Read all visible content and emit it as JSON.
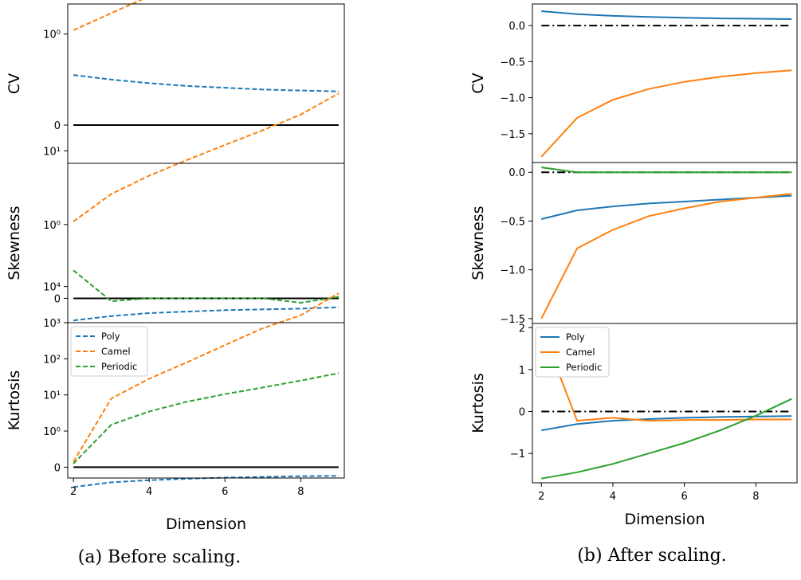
{
  "colors": {
    "poly": "#1f77b4",
    "camel": "#ff7f0e",
    "periodic": "#2ca02c",
    "reference": "#000000"
  },
  "captions": {
    "left": "(a) Before scaling.",
    "right": "(b) After scaling."
  },
  "chart_data": [
    {
      "id": "before",
      "type": "line",
      "line_style": "dashed",
      "x": [
        2,
        3,
        4,
        5,
        6,
        7,
        8,
        9
      ],
      "xlabel": "Dimension",
      "xticks": [
        "2",
        "4",
        "6",
        "8"
      ],
      "xlim": [
        1.85,
        9.15
      ],
      "yscale": "symlog",
      "legend": {
        "panel": "Kurtosis",
        "position": "top-left",
        "entries": [
          "Poly",
          "Camel",
          "Periodic"
        ]
      },
      "panels": [
        {
          "ylabel": "CV",
          "yticks": [
            "0",
            "10⁰",
            "10¹"
          ],
          "ylim_log10": [
            -0.42,
            1.33
          ],
          "reference": 0,
          "series": [
            {
              "name": "Poly",
              "values": [
                0.55,
                0.5,
                0.46,
                0.43,
                0.41,
                0.39,
                0.38,
                0.37
              ]
            },
            {
              "name": "Camel",
              "values": [
                1.1,
                1.7,
                2.6,
                3.8,
                5.6,
                8.3,
                12,
                17.5
              ]
            }
          ]
        },
        {
          "ylabel": "Skewness",
          "yticks": [
            "0",
            "10⁰",
            "10¹"
          ],
          "ylim_log10": [
            -0.33,
            1.83
          ],
          "reference": 0,
          "series": [
            {
              "name": "Poly",
              "values": [
                -0.3,
                -0.24,
                -0.2,
                -0.18,
                -0.16,
                -0.15,
                -0.14,
                -0.12
              ]
            },
            {
              "name": "Camel",
              "values": [
                1.1,
                2.6,
                4.6,
                7.5,
                12,
                19,
                31,
                60
              ]
            },
            {
              "name": "Periodic",
              "values": [
                0.38,
                -0.04,
                0.0,
                0.0,
                0.0,
                0.0,
                -0.06,
                0.02
              ]
            }
          ]
        },
        {
          "ylabel": "Kurtosis",
          "yticks": [
            "0",
            "10⁰",
            "10¹",
            "10²",
            "10³",
            "10⁴"
          ],
          "ylim_log10": [
            -0.3,
            4.0
          ],
          "reference": 0,
          "series": [
            {
              "name": "Poly",
              "values": [
                -0.55,
                -0.42,
                -0.36,
                -0.32,
                -0.29,
                -0.27,
                -0.25,
                -0.24
              ]
            },
            {
              "name": "Camel",
              "values": [
                0.15,
                8,
                28,
                80,
                240,
                700,
                1600,
                6500
              ]
            },
            {
              "name": "Periodic",
              "values": [
                0.1,
                1.5,
                3.5,
                6.5,
                10.5,
                16,
                25,
                40
              ]
            }
          ]
        }
      ]
    },
    {
      "id": "after",
      "type": "line",
      "line_style": "solid",
      "x": [
        2,
        3,
        4,
        5,
        6,
        7,
        8,
        9
      ],
      "xlabel": "Dimension",
      "xticks": [
        "2",
        "4",
        "6",
        "8"
      ],
      "xlim": [
        1.75,
        9.15
      ],
      "yscale": "linear",
      "legend": {
        "panel": "Kurtosis",
        "position": "top-left",
        "entries": [
          "Poly",
          "Camel",
          "Periodic"
        ]
      },
      "panels": [
        {
          "ylabel": "CV",
          "yticks": [
            0.0,
            -0.5,
            -1.0,
            -1.5
          ],
          "ytick_labels": [
            "0.0",
            "−0.5",
            "−1.0",
            "−1.5"
          ],
          "ylim": [
            -1.9,
            0.3
          ],
          "reference": 0,
          "series": [
            {
              "name": "Poly",
              "values": [
                0.2,
                0.16,
                0.135,
                0.12,
                0.11,
                0.1,
                0.095,
                0.09
              ]
            },
            {
              "name": "Camel",
              "values": [
                -1.82,
                -1.28,
                -1.03,
                -0.88,
                -0.78,
                -0.71,
                -0.66,
                -0.62
              ]
            }
          ]
        },
        {
          "ylabel": "Skewness",
          "yticks": [
            0.0,
            -0.5,
            -1.0,
            -1.5
          ],
          "ytick_labels": [
            "0.0",
            "−0.5",
            "−1.0",
            "−1.5"
          ],
          "ylim": [
            -1.55,
            0.1
          ],
          "reference": 0,
          "series": [
            {
              "name": "Poly",
              "values": [
                -0.48,
                -0.39,
                -0.35,
                -0.32,
                -0.3,
                -0.28,
                -0.26,
                -0.24
              ]
            },
            {
              "name": "Camel",
              "values": [
                -1.5,
                -0.78,
                -0.59,
                -0.45,
                -0.37,
                -0.3,
                -0.26,
                -0.22
              ]
            },
            {
              "name": "Periodic",
              "values": [
                0.05,
                0.0,
                0.0,
                0.0,
                0.0,
                0.0,
                0.0,
                0.0
              ]
            }
          ]
        },
        {
          "ylabel": "Kurtosis",
          "yticks": [
            2,
            1,
            0,
            -1
          ],
          "ytick_labels": [
            "2",
            "1",
            "0",
            "−1"
          ],
          "ylim": [
            -1.7,
            2.1
          ],
          "reference": 0,
          "series": [
            {
              "name": "Poly",
              "values": [
                -0.45,
                -0.3,
                -0.22,
                -0.18,
                -0.15,
                -0.13,
                -0.12,
                -0.11
              ]
            },
            {
              "name": "Camel",
              "values": [
                2.0,
                -0.22,
                -0.15,
                -0.22,
                -0.2,
                -0.2,
                -0.19,
                -0.19
              ]
            },
            {
              "name": "Periodic",
              "values": [
                -1.6,
                -1.45,
                -1.25,
                -1.0,
                -0.75,
                -0.45,
                -0.1,
                0.3
              ]
            }
          ]
        }
      ]
    }
  ]
}
